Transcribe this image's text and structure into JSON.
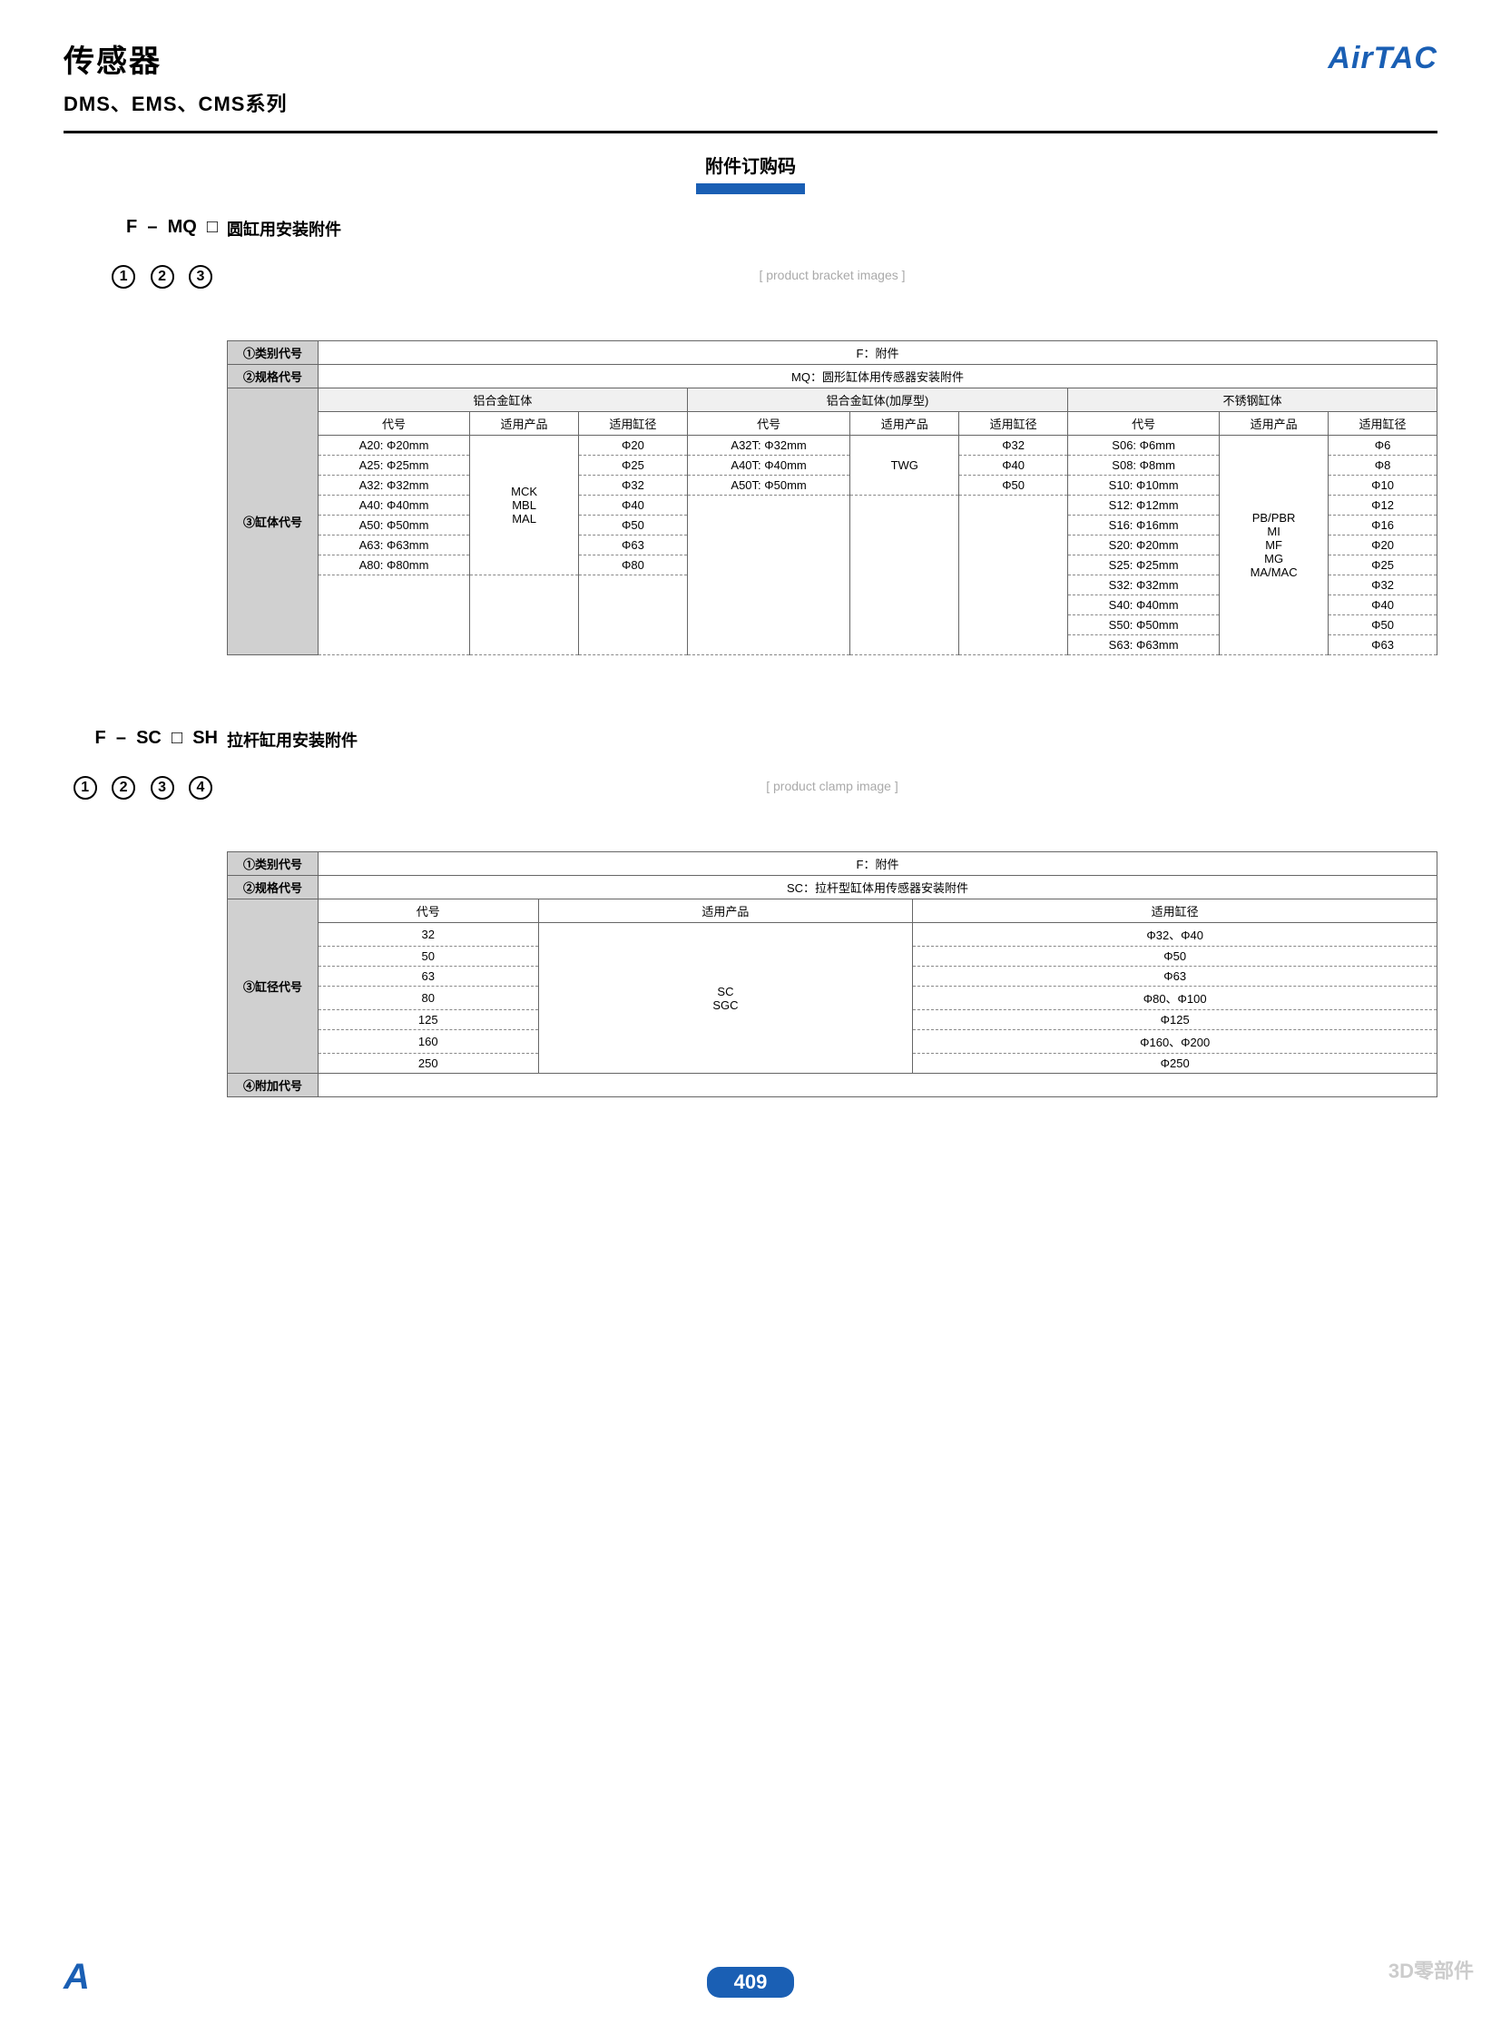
{
  "header": {
    "title": "传感器",
    "subtitle": "DMS、EMS、CMS系列",
    "logo": "AirTAC"
  },
  "section_title": "附件订购码",
  "section1": {
    "code_parts": [
      "F",
      "–",
      "MQ",
      "□"
    ],
    "circles": [
      "1",
      "2",
      "3"
    ],
    "label": "圆缸用安装附件",
    "rows": {
      "r1_label": "①类别代号",
      "r1_val": "F：附件",
      "r2_label": "②规格代号",
      "r2_val": "MQ：圆形缸体用传感器安装附件",
      "r3_label": "③缸体代号",
      "grp1": "铝合金缸体",
      "grp2": "铝合金缸体(加厚型)",
      "grp3": "不锈钢缸体",
      "sub": [
        "代号",
        "适用产品",
        "适用缸径"
      ],
      "g1_prod": "MCK\nMBL\nMAL",
      "g1_data": [
        [
          "A20: Φ20mm",
          "Φ20"
        ],
        [
          "A25: Φ25mm",
          "Φ25"
        ],
        [
          "A32: Φ32mm",
          "Φ32"
        ],
        [
          "A40: Φ40mm",
          "Φ40"
        ],
        [
          "A50: Φ50mm",
          "Φ50"
        ],
        [
          "A63: Φ63mm",
          "Φ63"
        ],
        [
          "A80: Φ80mm",
          "Φ80"
        ]
      ],
      "g2_prod": "TWG",
      "g2_data": [
        [
          "A32T: Φ32mm",
          "Φ32"
        ],
        [
          "A40T: Φ40mm",
          "Φ40"
        ],
        [
          "A50T: Φ50mm",
          "Φ50"
        ]
      ],
      "g3_prod": "PB/PBR\nMI\nMF\nMG\nMA/MAC",
      "g3_data": [
        [
          "S06: Φ6mm",
          "Φ6"
        ],
        [
          "S08: Φ8mm",
          "Φ8"
        ],
        [
          "S10: Φ10mm",
          "Φ10"
        ],
        [
          "S12: Φ12mm",
          "Φ12"
        ],
        [
          "S16: Φ16mm",
          "Φ16"
        ],
        [
          "S20: Φ20mm",
          "Φ20"
        ],
        [
          "S25: Φ25mm",
          "Φ25"
        ],
        [
          "S32: Φ32mm",
          "Φ32"
        ],
        [
          "S40: Φ40mm",
          "Φ40"
        ],
        [
          "S50: Φ50mm",
          "Φ50"
        ],
        [
          "S63: Φ63mm",
          "Φ63"
        ]
      ]
    }
  },
  "section2": {
    "code_parts": [
      "F",
      "–",
      "SC",
      "□",
      "SH"
    ],
    "circles": [
      "1",
      "2",
      "3",
      "4"
    ],
    "label": "拉杆缸用安装附件",
    "rows": {
      "r1_label": "①类别代号",
      "r1_val": "F：附件",
      "r2_label": "②规格代号",
      "r2_val": "SC：拉杆型缸体用传感器安装附件",
      "r3_label": "③缸径代号",
      "r4_label": "④附加代号",
      "sub": [
        "代号",
        "适用产品",
        "适用缸径"
      ],
      "prod": "SC\nSGC",
      "data": [
        [
          "32",
          "Φ32、Φ40"
        ],
        [
          "50",
          "Φ50"
        ],
        [
          "63",
          "Φ63"
        ],
        [
          "80",
          "Φ80、Φ100"
        ],
        [
          "125",
          "Φ125"
        ],
        [
          "160",
          "Φ160、Φ200"
        ],
        [
          "250",
          "Φ250"
        ]
      ]
    }
  },
  "footer": {
    "page": "409",
    "watermark": "3D零部件"
  }
}
